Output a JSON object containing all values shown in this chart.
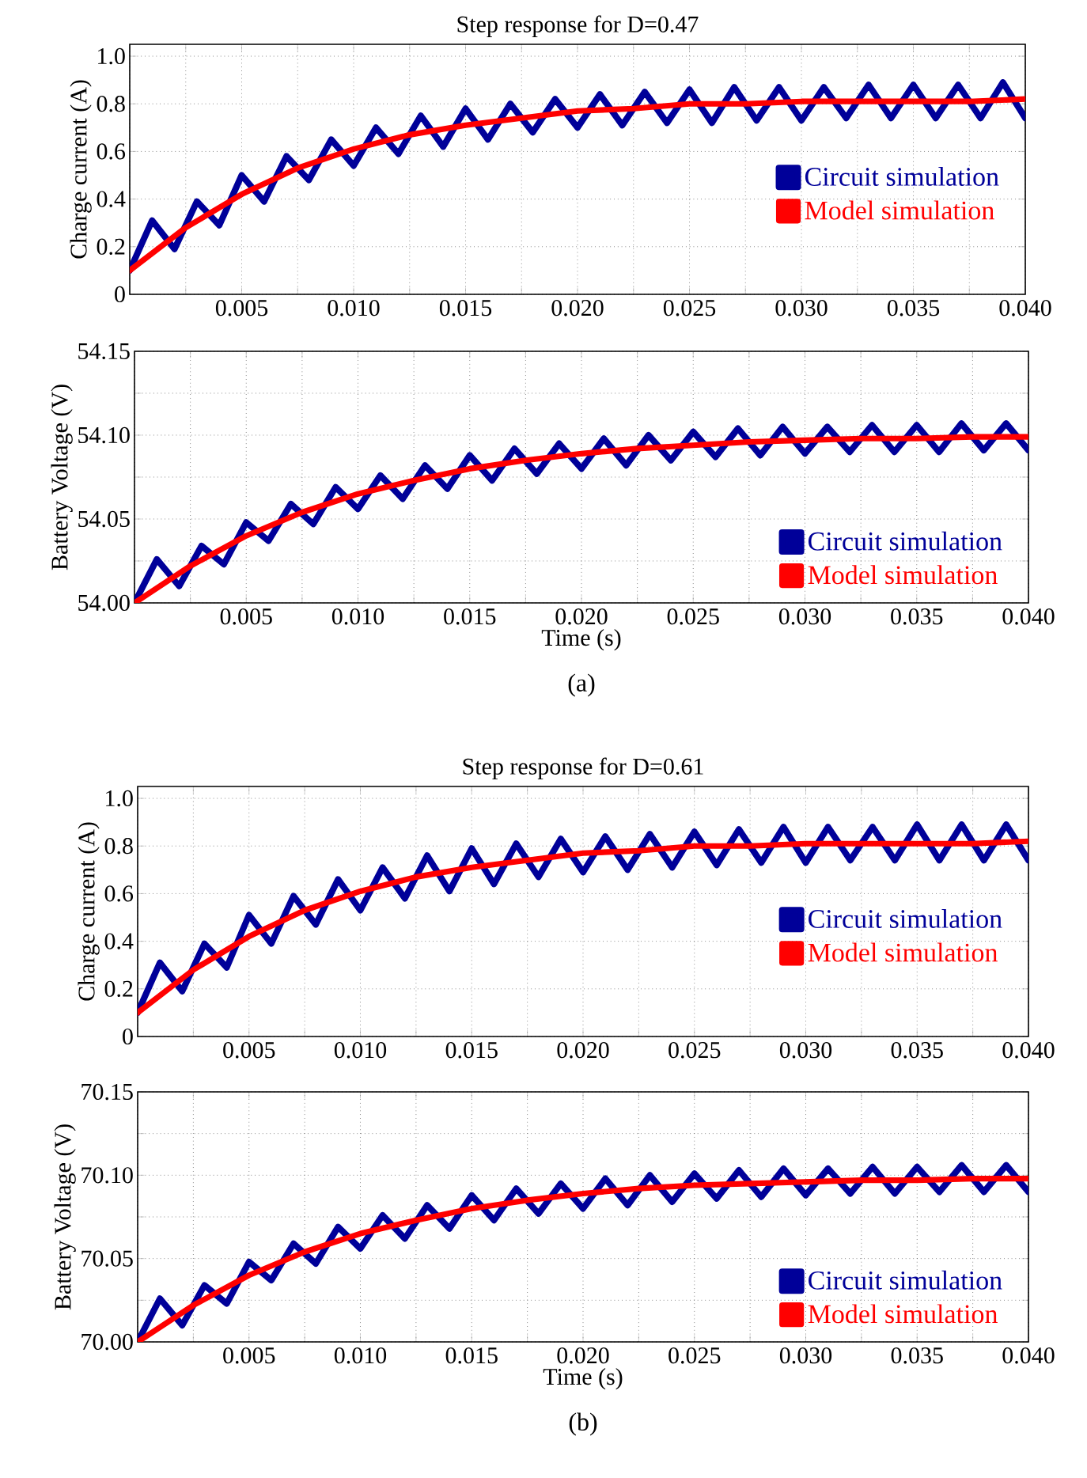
{
  "chart_data": [
    {
      "type": "line",
      "title": "Step response for D=0.47",
      "ylabel": "Charge current (A)",
      "x": [
        0,
        0.0025,
        0.005,
        0.0075,
        0.01,
        0.0125,
        0.015,
        0.0175,
        0.02,
        0.0225,
        0.025,
        0.0275,
        0.03,
        0.0325,
        0.035,
        0.0375,
        0.04
      ],
      "series": [
        {
          "name": "Circuit simulation",
          "color": "#000099",
          "x": [
            0,
            0.001,
            0.002,
            0.003,
            0.004,
            0.005,
            0.006,
            0.007,
            0.008,
            0.009,
            0.01,
            0.011,
            0.012,
            0.013,
            0.014,
            0.015,
            0.016,
            0.017,
            0.018,
            0.019,
            0.02,
            0.021,
            0.022,
            0.023,
            0.024,
            0.025,
            0.026,
            0.027,
            0.028,
            0.029,
            0.03,
            0.031,
            0.032,
            0.033,
            0.034,
            0.035,
            0.036,
            0.037,
            0.038,
            0.039,
            0.04
          ],
          "values": [
            0.1,
            0.31,
            0.19,
            0.39,
            0.29,
            0.5,
            0.39,
            0.58,
            0.48,
            0.65,
            0.54,
            0.7,
            0.59,
            0.75,
            0.62,
            0.78,
            0.65,
            0.8,
            0.68,
            0.82,
            0.7,
            0.84,
            0.71,
            0.85,
            0.72,
            0.86,
            0.72,
            0.87,
            0.73,
            0.87,
            0.73,
            0.87,
            0.74,
            0.88,
            0.74,
            0.88,
            0.74,
            0.88,
            0.74,
            0.89,
            0.74
          ]
        },
        {
          "name": "Model simulation",
          "color": "#ff0000",
          "values": [
            0.1,
            0.28,
            0.42,
            0.53,
            0.61,
            0.67,
            0.71,
            0.74,
            0.77,
            0.78,
            0.8,
            0.8,
            0.81,
            0.81,
            0.81,
            0.81,
            0.82
          ]
        }
      ],
      "xlim": [
        0,
        0.04
      ],
      "ylim": [
        0,
        1.05
      ],
      "xticks": [
        {
          "value": 0,
          "label": null
        },
        {
          "value": 0.0025,
          "label": null
        },
        {
          "value": 0.005,
          "label": "0.005"
        },
        {
          "value": 0.0075,
          "label": null
        },
        {
          "value": 0.01,
          "label": "0.010"
        },
        {
          "value": 0.0125,
          "label": null
        },
        {
          "value": 0.015,
          "label": "0.015"
        },
        {
          "value": 0.0175,
          "label": null
        },
        {
          "value": 0.02,
          "label": "0.020"
        },
        {
          "value": 0.0225,
          "label": null
        },
        {
          "value": 0.025,
          "label": "0.025"
        },
        {
          "value": 0.0275,
          "label": null
        },
        {
          "value": 0.03,
          "label": "0.030"
        },
        {
          "value": 0.0325,
          "label": null
        },
        {
          "value": 0.035,
          "label": "0.035"
        },
        {
          "value": 0.0375,
          "label": null
        },
        {
          "value": 0.04,
          "label": "0.040"
        }
      ],
      "yticks": [
        0,
        0.2,
        0.4,
        0.6,
        0.8,
        {
          "value": 1,
          "label": "1.0"
        }
      ],
      "grid": true,
      "legend": "right"
    },
    {
      "type": "line",
      "xlabel": "Time (s)",
      "ylabel": "Battery Voltage (V)",
      "annotations": [
        "(a)"
      ],
      "x": [
        0,
        0.0025,
        0.005,
        0.0075,
        0.01,
        0.0125,
        0.015,
        0.0175,
        0.02,
        0.0225,
        0.025,
        0.0275,
        0.03,
        0.0325,
        0.035,
        0.0375,
        0.04
      ],
      "series": [
        {
          "name": "Circuit simulation",
          "color": "#000099",
          "x": [
            0,
            0.001,
            0.002,
            0.003,
            0.004,
            0.005,
            0.006,
            0.007,
            0.008,
            0.009,
            0.01,
            0.011,
            0.012,
            0.013,
            0.014,
            0.015,
            0.016,
            0.017,
            0.018,
            0.019,
            0.02,
            0.021,
            0.022,
            0.023,
            0.024,
            0.025,
            0.026,
            0.027,
            0.028,
            0.029,
            0.03,
            0.031,
            0.032,
            0.033,
            0.034,
            0.035,
            0.036,
            0.037,
            0.038,
            0.039,
            0.04
          ],
          "values": [
            54.0,
            54.026,
            54.01,
            54.034,
            54.023,
            54.048,
            54.037,
            54.059,
            54.047,
            54.069,
            54.056,
            54.076,
            54.062,
            54.082,
            54.068,
            54.088,
            54.073,
            54.092,
            54.077,
            54.095,
            54.08,
            54.098,
            54.082,
            54.1,
            54.085,
            54.102,
            54.087,
            54.104,
            54.088,
            54.105,
            54.089,
            54.105,
            54.09,
            54.106,
            54.09,
            54.106,
            54.09,
            54.107,
            54.091,
            54.107,
            54.091
          ]
        },
        {
          "name": "Model simulation",
          "color": "#ff0000",
          "values": [
            54.0,
            54.022,
            54.04,
            54.054,
            54.065,
            54.073,
            54.08,
            54.085,
            54.089,
            54.092,
            54.094,
            54.096,
            54.097,
            54.098,
            54.098,
            54.099,
            54.099
          ]
        }
      ],
      "xlim": [
        0,
        0.04
      ],
      "ylim": [
        54,
        54.15
      ],
      "xticks": [
        {
          "value": 0,
          "label": null
        },
        {
          "value": 0.0025,
          "label": null
        },
        {
          "value": 0.005,
          "label": "0.005"
        },
        {
          "value": 0.0075,
          "label": null
        },
        {
          "value": 0.01,
          "label": "0.010"
        },
        {
          "value": 0.0125,
          "label": null
        },
        {
          "value": 0.015,
          "label": "0.015"
        },
        {
          "value": 0.0175,
          "label": null
        },
        {
          "value": 0.02,
          "label": "0.020"
        },
        {
          "value": 0.0225,
          "label": null
        },
        {
          "value": 0.025,
          "label": "0.025"
        },
        {
          "value": 0.0275,
          "label": null
        },
        {
          "value": 0.03,
          "label": "0.030"
        },
        {
          "value": 0.0325,
          "label": null
        },
        {
          "value": 0.035,
          "label": "0.035"
        },
        {
          "value": 0.0375,
          "label": null
        },
        {
          "value": 0.04,
          "label": "0.040"
        }
      ],
      "yticks": [
        {
          "value": 54,
          "label": "54.00"
        },
        {
          "value": 54.025,
          "label": null
        },
        {
          "value": 54.05,
          "label": "54.05"
        },
        {
          "value": 54.075,
          "label": null
        },
        {
          "value": 54.1,
          "label": "54.10"
        },
        {
          "value": 54.125,
          "label": null
        },
        {
          "value": 54.15,
          "label": "54.15"
        }
      ],
      "grid": true,
      "legend": "bottom right"
    },
    {
      "type": "line",
      "title": "Step response for D=0.61",
      "ylabel": "Charge current (A)",
      "x": [
        0,
        0.0025,
        0.005,
        0.0075,
        0.01,
        0.0125,
        0.015,
        0.0175,
        0.02,
        0.0225,
        0.025,
        0.0275,
        0.03,
        0.0325,
        0.035,
        0.0375,
        0.04
      ],
      "series": [
        {
          "name": "Circuit simulation",
          "color": "#000099",
          "x": [
            0,
            0.001,
            0.002,
            0.003,
            0.004,
            0.005,
            0.006,
            0.007,
            0.008,
            0.009,
            0.01,
            0.011,
            0.012,
            0.013,
            0.014,
            0.015,
            0.016,
            0.017,
            0.018,
            0.019,
            0.02,
            0.021,
            0.022,
            0.023,
            0.024,
            0.025,
            0.026,
            0.027,
            0.028,
            0.029,
            0.03,
            0.031,
            0.032,
            0.033,
            0.034,
            0.035,
            0.036,
            0.037,
            0.038,
            0.039,
            0.04
          ],
          "values": [
            0.1,
            0.31,
            0.19,
            0.39,
            0.29,
            0.51,
            0.39,
            0.59,
            0.47,
            0.66,
            0.53,
            0.71,
            0.58,
            0.76,
            0.61,
            0.79,
            0.64,
            0.81,
            0.67,
            0.83,
            0.69,
            0.84,
            0.7,
            0.85,
            0.71,
            0.86,
            0.72,
            0.87,
            0.73,
            0.88,
            0.73,
            0.88,
            0.74,
            0.88,
            0.74,
            0.89,
            0.74,
            0.89,
            0.74,
            0.89,
            0.74
          ]
        },
        {
          "name": "Model simulation",
          "color": "#ff0000",
          "values": [
            0.1,
            0.28,
            0.42,
            0.53,
            0.61,
            0.67,
            0.71,
            0.74,
            0.77,
            0.78,
            0.8,
            0.8,
            0.81,
            0.81,
            0.81,
            0.81,
            0.82
          ]
        }
      ],
      "xlim": [
        0,
        0.04
      ],
      "ylim": [
        0,
        1.05
      ],
      "xticks": [
        {
          "value": 0,
          "label": null
        },
        {
          "value": 0.0025,
          "label": null
        },
        {
          "value": 0.005,
          "label": "0.005"
        },
        {
          "value": 0.0075,
          "label": null
        },
        {
          "value": 0.01,
          "label": "0.010"
        },
        {
          "value": 0.0125,
          "label": null
        },
        {
          "value": 0.015,
          "label": "0.015"
        },
        {
          "value": 0.0175,
          "label": null
        },
        {
          "value": 0.02,
          "label": "0.020"
        },
        {
          "value": 0.0225,
          "label": null
        },
        {
          "value": 0.025,
          "label": "0.025"
        },
        {
          "value": 0.0275,
          "label": null
        },
        {
          "value": 0.03,
          "label": "0.030"
        },
        {
          "value": 0.0325,
          "label": null
        },
        {
          "value": 0.035,
          "label": "0.035"
        },
        {
          "value": 0.0375,
          "label": null
        },
        {
          "value": 0.04,
          "label": "0.040"
        }
      ],
      "yticks": [
        0,
        0.2,
        0.4,
        0.6,
        0.8,
        {
          "value": 1,
          "label": "1.0"
        }
      ],
      "grid": true,
      "legend": "right"
    },
    {
      "type": "line",
      "xlabel": "Time (s)",
      "ylabel": "Battery Voltage (V)",
      "annotations": [
        "(b)"
      ],
      "x": [
        0,
        0.0025,
        0.005,
        0.0075,
        0.01,
        0.0125,
        0.015,
        0.0175,
        0.02,
        0.0225,
        0.025,
        0.0275,
        0.03,
        0.0325,
        0.035,
        0.0375,
        0.04
      ],
      "series": [
        {
          "name": "Circuit simulation",
          "color": "#000099",
          "x": [
            0,
            0.001,
            0.002,
            0.003,
            0.004,
            0.005,
            0.006,
            0.007,
            0.008,
            0.009,
            0.01,
            0.011,
            0.012,
            0.013,
            0.014,
            0.015,
            0.016,
            0.017,
            0.018,
            0.019,
            0.02,
            0.021,
            0.022,
            0.023,
            0.024,
            0.025,
            0.026,
            0.027,
            0.028,
            0.029,
            0.03,
            0.031,
            0.032,
            0.033,
            0.034,
            0.035,
            0.036,
            0.037,
            0.038,
            0.039,
            0.04
          ],
          "values": [
            70.0,
            70.026,
            70.01,
            70.034,
            70.023,
            70.048,
            70.037,
            70.059,
            70.047,
            70.069,
            70.056,
            70.076,
            70.062,
            70.082,
            70.068,
            70.088,
            70.073,
            70.092,
            70.077,
            70.095,
            70.08,
            70.098,
            70.082,
            70.1,
            70.084,
            70.101,
            70.086,
            70.103,
            70.087,
            70.104,
            70.088,
            70.104,
            70.089,
            70.105,
            70.089,
            70.105,
            70.09,
            70.106,
            70.09,
            70.106,
            70.09
          ]
        },
        {
          "name": "Model simulation",
          "color": "#ff0000",
          "values": [
            70.0,
            70.022,
            70.04,
            70.054,
            70.065,
            70.073,
            70.08,
            70.085,
            70.089,
            70.092,
            70.094,
            70.095,
            70.096,
            70.097,
            70.097,
            70.098,
            70.098
          ]
        }
      ],
      "xlim": [
        0,
        0.04
      ],
      "ylim": [
        70,
        70.15
      ],
      "xticks": [
        {
          "value": 0,
          "label": null
        },
        {
          "value": 0.0025,
          "label": null
        },
        {
          "value": 0.005,
          "label": "0.005"
        },
        {
          "value": 0.0075,
          "label": null
        },
        {
          "value": 0.01,
          "label": "0.010"
        },
        {
          "value": 0.0125,
          "label": null
        },
        {
          "value": 0.015,
          "label": "0.015"
        },
        {
          "value": 0.0175,
          "label": null
        },
        {
          "value": 0.02,
          "label": "0.020"
        },
        {
          "value": 0.0225,
          "label": null
        },
        {
          "value": 0.025,
          "label": "0.025"
        },
        {
          "value": 0.0275,
          "label": null
        },
        {
          "value": 0.03,
          "label": "0.030"
        },
        {
          "value": 0.0325,
          "label": null
        },
        {
          "value": 0.035,
          "label": "0.035"
        },
        {
          "value": 0.0375,
          "label": null
        },
        {
          "value": 0.04,
          "label": "0.040"
        }
      ],
      "yticks": [
        {
          "value": 70,
          "label": "70.00"
        },
        {
          "value": 70.025,
          "label": null
        },
        {
          "value": 70.05,
          "label": "70.05"
        },
        {
          "value": 70.075,
          "label": null
        },
        {
          "value": 70.1,
          "label": "70.10"
        },
        {
          "value": 70.125,
          "label": null
        },
        {
          "value": 70.15,
          "label": "70.15"
        }
      ],
      "grid": true,
      "legend": "bottom right"
    }
  ]
}
